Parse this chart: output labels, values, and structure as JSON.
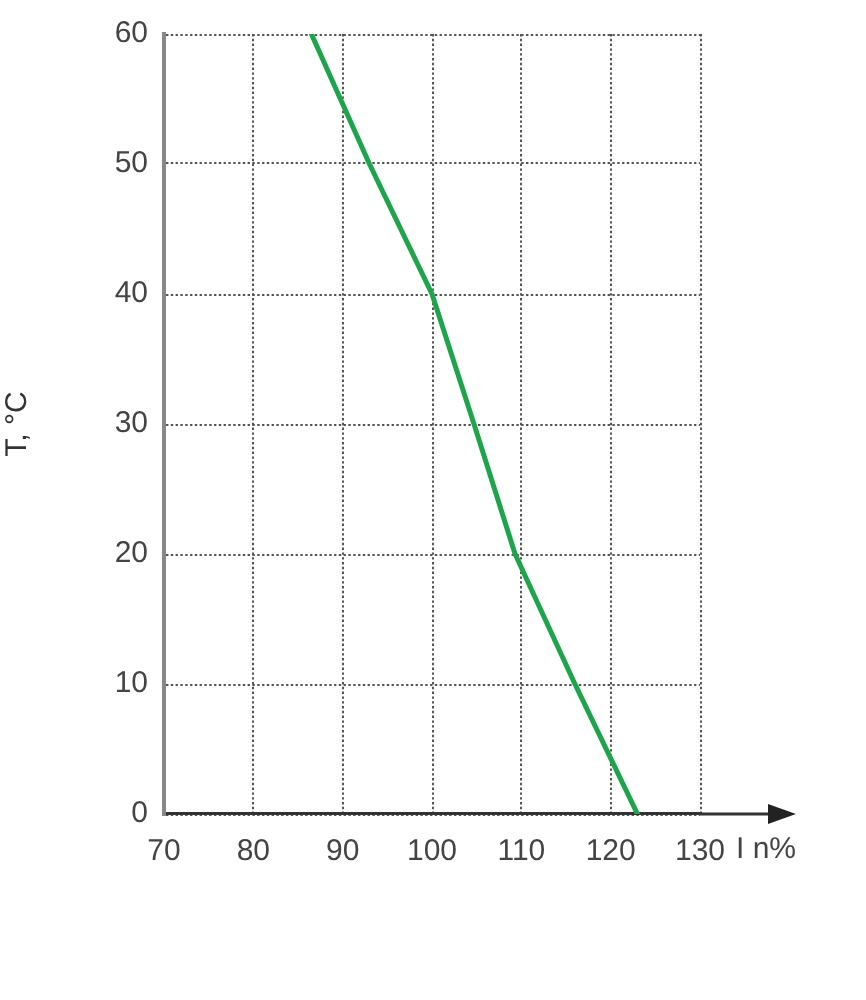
{
  "chart_data": {
    "type": "line",
    "xlabel": "I n%",
    "ylabel": "T, °C",
    "x": [
      86.5,
      93,
      100,
      104.7,
      109.3,
      116,
      123
    ],
    "series": [
      {
        "color": "#1ea54c",
        "values": [
          60,
          50,
          40,
          30,
          20,
          10,
          0
        ]
      }
    ],
    "xlim": [
      70,
      130
    ],
    "xticks": [
      70,
      80,
      90,
      100,
      110,
      120,
      130
    ],
    "ylim": [
      0,
      60
    ],
    "yticks": [
      0,
      10,
      20,
      30,
      40,
      50,
      60
    ],
    "grid": true,
    "marker": "none"
  }
}
